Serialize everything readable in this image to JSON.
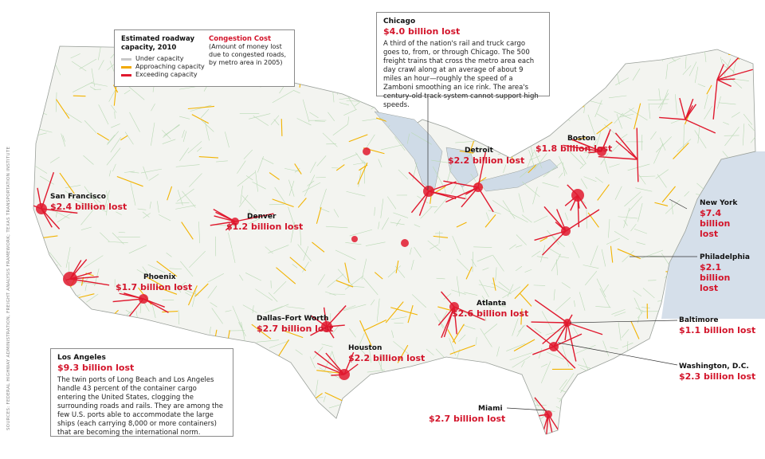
{
  "legend": {
    "title": "Estimated roadway capacity, 2010",
    "items": [
      "Under capacity",
      "Approaching capacity",
      "Exceeding capacity"
    ]
  },
  "congestion": {
    "title": "Congestion Cost",
    "note": "(Amount of money lost due to congested roads, by metro area in 2005)"
  },
  "chicago": {
    "name": "Chicago",
    "cost": "$4.0 billion lost",
    "description": "A third of the nation's rail and truck cargo goes to, from, or through Chicago. The 500 freight trains that cross the metro area each day crawl along at an average of about 9 miles an hour—roughly the speed of a Zamboni smoothing an ice rink. The area's century-old track system cannot support high speeds."
  },
  "los_angeles": {
    "name": "Los Angeles",
    "cost": "$9.3 billion lost",
    "description": "The twin ports of Long Beach and Los Angeles handle 43 percent of the container cargo entering the United States, clogging the surrounding roads and rails. They are among the few U.S. ports able to accommodate the large ships (each carrying 8,000 or more containers) that are becoming the international norm."
  },
  "cities": [
    {
      "name": "San Francisco",
      "cost": "$2.4 billion lost"
    },
    {
      "name": "Phoenix",
      "cost": "$1.7 billion lost"
    },
    {
      "name": "Denver",
      "cost": "$1.2 billion lost"
    },
    {
      "name": "Dallas–Fort Worth",
      "cost": "$2.7 billion lost"
    },
    {
      "name": "Houston",
      "cost": "$2.2 billion lost"
    },
    {
      "name": "Atlanta",
      "cost": "$2.6 billion lost"
    },
    {
      "name": "Detroit",
      "cost": "$2.2 billion lost"
    },
    {
      "name": "Boston",
      "cost": "$1.8 billion lost"
    },
    {
      "name": "New York",
      "cost": "$7.4 billion lost"
    },
    {
      "name": "Philadelphia",
      "cost": "$2.1 billion lost"
    },
    {
      "name": "Baltimore",
      "cost": "$1.1 billion lost"
    },
    {
      "name": "Washington, D.C.",
      "cost": "$2.3 billion lost"
    },
    {
      "name": "Miami",
      "cost": "$2.7 billion lost"
    }
  ],
  "source": "SOURCES: FEDERAL HIGHWAY ADMINISTRATION, FREIGHT ANALYSIS FRAMEWORK; TEXAS TRANSPORTATION INSTITUTE"
}
